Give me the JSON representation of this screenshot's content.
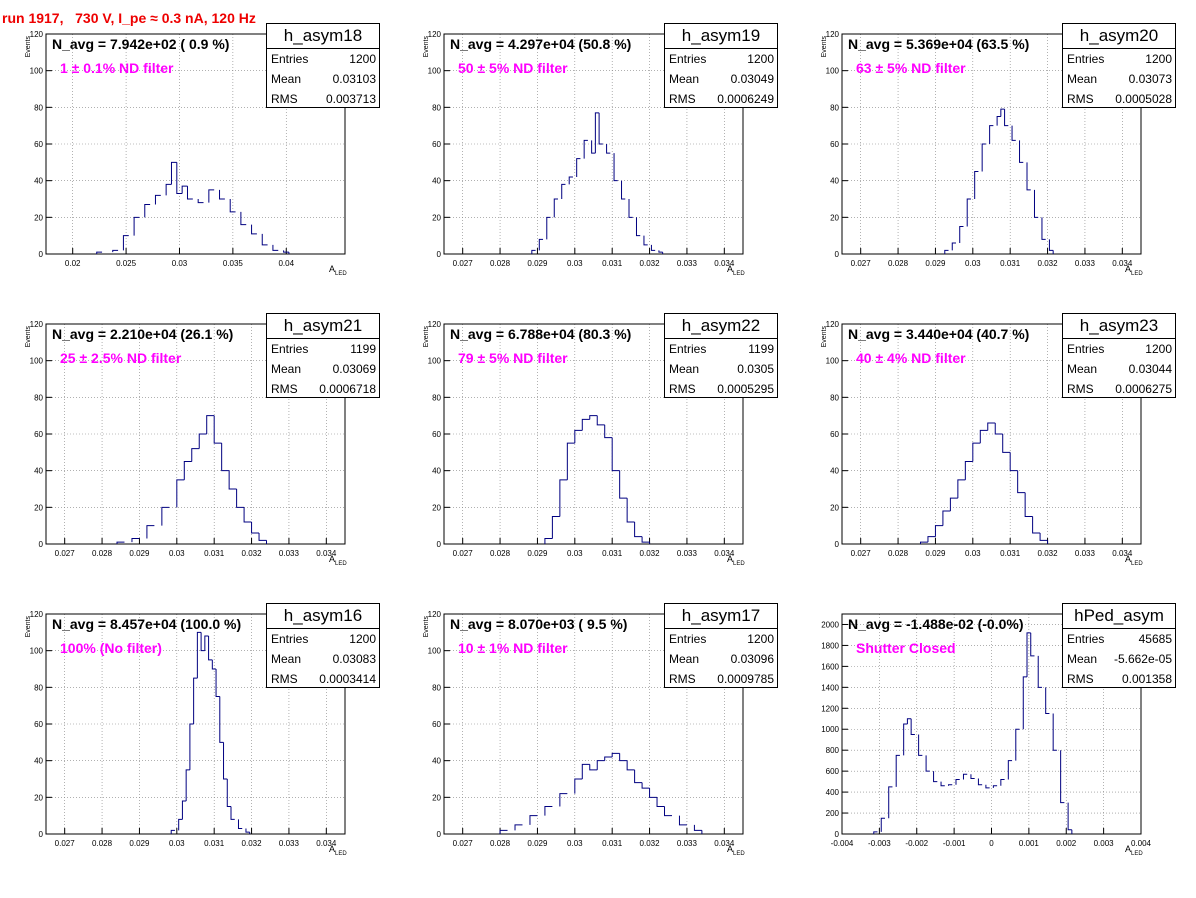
{
  "title": "run 1917,   730 V, I_pe ≈ 0.3 nA, 120 Hz",
  "colors": {
    "hist_line": "#000080",
    "title": "#ee0000",
    "annotation": "#ff00ff",
    "grid": "#808080"
  },
  "chart_data": [
    {
      "type": "histogram",
      "name": "h_asym18",
      "navg": "N_avg = 7.942e+02 ( 0.9 %)",
      "filter": "1 ± 0.1% ND filter",
      "stats": {
        "entries_label": "Entries",
        "entries": "1200",
        "mean_label": "Mean",
        "mean": "0.03103",
        "rms_label": "RMS",
        "rms": "0.003713"
      },
      "xlabel": "A_LED",
      "ylabel": "Events",
      "xlim": [
        0.0175,
        0.0455
      ],
      "ylim": [
        0,
        120
      ],
      "xticks": [
        0.02,
        0.025,
        0.03,
        0.035,
        0.04
      ],
      "xtick_labels": [
        "0.02",
        "0.025",
        "0.03",
        "0.035",
        "0.04"
      ],
      "yticks": [
        0,
        20,
        40,
        60,
        80,
        100,
        120
      ],
      "ytick_labels": [
        "0",
        "20",
        "40",
        "60",
        "80",
        "100",
        "120"
      ],
      "x": [
        0.0225,
        0.024,
        0.025,
        0.026,
        0.027,
        0.028,
        0.029,
        0.0295,
        0.03,
        0.0305,
        0.031,
        0.032,
        0.033,
        0.034,
        0.035,
        0.036,
        0.037,
        0.038,
        0.039,
        0.04
      ],
      "y": [
        1,
        2,
        10,
        20,
        27,
        32,
        38,
        50,
        33,
        37,
        30,
        28,
        35,
        30,
        23,
        16,
        11,
        5,
        2,
        1
      ]
    },
    {
      "type": "histogram",
      "name": "h_asym19",
      "navg": "N_avg = 4.297e+04 (50.8 %)",
      "filter": "50 ± 5% ND filter",
      "stats": {
        "entries_label": "Entries",
        "entries": "1200",
        "mean_label": "Mean",
        "mean": "0.03049",
        "rms_label": "RMS",
        "rms": "0.0006249"
      },
      "xlabel": "A_LED",
      "ylabel": "Events",
      "xlim": [
        0.0265,
        0.0345
      ],
      "ylim": [
        0,
        120
      ],
      "xticks": [
        0.027,
        0.028,
        0.029,
        0.03,
        0.031,
        0.032,
        0.033,
        0.034
      ],
      "xtick_labels": [
        "0.027",
        "0.028",
        "0.029",
        "0.03",
        "0.031",
        "0.032",
        "0.033",
        "0.034"
      ],
      "yticks": [
        0,
        20,
        40,
        60,
        80,
        100,
        120
      ],
      "ytick_labels": [
        "0",
        "20",
        "40",
        "60",
        "80",
        "100",
        "120"
      ],
      "x": [
        0.0289,
        0.0291,
        0.0293,
        0.0295,
        0.0297,
        0.0299,
        0.0301,
        0.0303,
        0.0305,
        0.0306,
        0.0307,
        0.0309,
        0.0311,
        0.0313,
        0.0315,
        0.0317,
        0.0319,
        0.0321,
        0.0323
      ],
      "y": [
        2,
        8,
        20,
        30,
        38,
        42,
        52,
        62,
        55,
        77,
        60,
        55,
        40,
        30,
        20,
        10,
        5,
        2,
        1
      ]
    },
    {
      "type": "histogram",
      "name": "h_asym20",
      "navg": "N_avg = 5.369e+04 (63.5 %)",
      "filter": "63 ± 5% ND filter",
      "stats": {
        "entries_label": "Entries",
        "entries": "1200",
        "mean_label": "Mean",
        "mean": "0.03073",
        "rms_label": "RMS",
        "rms": "0.0005028"
      },
      "xlabel": "A_LED",
      "ylabel": "Events",
      "xlim": [
        0.0265,
        0.0345
      ],
      "ylim": [
        0,
        120
      ],
      "xticks": [
        0.027,
        0.028,
        0.029,
        0.03,
        0.031,
        0.032,
        0.033,
        0.034
      ],
      "xtick_labels": [
        "0.027",
        "0.028",
        "0.029",
        "0.03",
        "0.031",
        "0.032",
        "0.033",
        "0.034"
      ],
      "yticks": [
        0,
        20,
        40,
        60,
        80,
        100,
        120
      ],
      "ytick_labels": [
        "0",
        "20",
        "40",
        "60",
        "80",
        "100",
        "120"
      ],
      "x": [
        0.0293,
        0.0295,
        0.0297,
        0.0299,
        0.0301,
        0.0303,
        0.0305,
        0.0307,
        0.0308,
        0.0309,
        0.0311,
        0.0313,
        0.0315,
        0.0317,
        0.0319,
        0.0321
      ],
      "y": [
        2,
        6,
        15,
        30,
        45,
        60,
        70,
        75,
        79,
        70,
        62,
        50,
        35,
        20,
        8,
        2
      ]
    },
    {
      "type": "histogram",
      "name": "h_asym21",
      "navg": "N_avg = 2.210e+04 (26.1 %)",
      "filter": "25 ± 2.5% ND filter",
      "stats": {
        "entries_label": "Entries",
        "entries": "1199",
        "mean_label": "Mean",
        "mean": "0.03069",
        "rms_label": "RMS",
        "rms": "0.0006718"
      },
      "xlabel": "A_LED",
      "ylabel": "Events",
      "xlim": [
        0.0265,
        0.0345
      ],
      "ylim": [
        0,
        120
      ],
      "xticks": [
        0.027,
        0.028,
        0.029,
        0.03,
        0.031,
        0.032,
        0.033,
        0.034
      ],
      "xtick_labels": [
        "0.027",
        "0.028",
        "0.029",
        "0.03",
        "0.031",
        "0.032",
        "0.033",
        "0.034"
      ],
      "yticks": [
        0,
        20,
        40,
        60,
        80,
        100,
        120
      ],
      "ytick_labels": [
        "0",
        "20",
        "40",
        "60",
        "80",
        "100",
        "120"
      ],
      "x": [
        0.0285,
        0.0289,
        0.0293,
        0.0297,
        0.0301,
        0.0303,
        0.0305,
        0.0307,
        0.0309,
        0.0311,
        0.0313,
        0.0315,
        0.0317,
        0.0319,
        0.0321,
        0.0323
      ],
      "y": [
        1,
        3,
        10,
        20,
        35,
        45,
        52,
        60,
        70,
        55,
        40,
        30,
        20,
        12,
        6,
        2
      ]
    },
    {
      "type": "histogram",
      "name": "h_asym22",
      "navg": "N_avg = 6.788e+04 (80.3 %)",
      "filter": "79 ± 5% ND filter",
      "stats": {
        "entries_label": "Entries",
        "entries": "1199",
        "mean_label": "Mean",
        "mean": "0.0305",
        "rms_label": "RMS",
        "rms": "0.0005295"
      },
      "xlabel": "A_LED",
      "ylabel": "Events",
      "xlim": [
        0.0265,
        0.0345
      ],
      "ylim": [
        0,
        120
      ],
      "xticks": [
        0.027,
        0.028,
        0.029,
        0.03,
        0.031,
        0.032,
        0.033,
        0.034
      ],
      "xtick_labels": [
        "0.027",
        "0.028",
        "0.029",
        "0.03",
        "0.031",
        "0.032",
        "0.033",
        "0.034"
      ],
      "yticks": [
        0,
        20,
        40,
        60,
        80,
        100,
        120
      ],
      "ytick_labels": [
        "0",
        "20",
        "40",
        "60",
        "80",
        "100",
        "120"
      ],
      "x": [
        0.0293,
        0.0295,
        0.0297,
        0.0299,
        0.0301,
        0.0303,
        0.0305,
        0.0307,
        0.0309,
        0.0311,
        0.0313,
        0.0315,
        0.0317,
        0.0319
      ],
      "y": [
        3,
        15,
        35,
        55,
        62,
        68,
        70,
        65,
        58,
        40,
        25,
        12,
        4,
        1
      ]
    },
    {
      "type": "histogram",
      "name": "h_asym23",
      "navg": "N_avg = 3.440e+04 (40.7 %)",
      "filter": "40 ± 4% ND filter",
      "stats": {
        "entries_label": "Entries",
        "entries": "1200",
        "mean_label": "Mean",
        "mean": "0.03044",
        "rms_label": "RMS",
        "rms": "0.0006275"
      },
      "xlabel": "A_LED",
      "ylabel": "Events",
      "xlim": [
        0.0265,
        0.0345
      ],
      "ylim": [
        0,
        120
      ],
      "xticks": [
        0.027,
        0.028,
        0.029,
        0.03,
        0.031,
        0.032,
        0.033,
        0.034
      ],
      "xtick_labels": [
        "0.027",
        "0.028",
        "0.029",
        "0.03",
        "0.031",
        "0.032",
        "0.033",
        "0.034"
      ],
      "yticks": [
        0,
        20,
        40,
        60,
        80,
        100,
        120
      ],
      "ytick_labels": [
        "0",
        "20",
        "40",
        "60",
        "80",
        "100",
        "120"
      ],
      "x": [
        0.0287,
        0.0289,
        0.0291,
        0.0293,
        0.0295,
        0.0297,
        0.0299,
        0.0301,
        0.0303,
        0.0305,
        0.0307,
        0.0309,
        0.0311,
        0.0313,
        0.0315,
        0.0317,
        0.0319
      ],
      "y": [
        1,
        4,
        10,
        18,
        25,
        35,
        45,
        55,
        62,
        66,
        60,
        50,
        40,
        28,
        15,
        6,
        2
      ]
    },
    {
      "type": "histogram",
      "name": "h_asym16",
      "navg": "N_avg = 8.457e+04 (100.0 %)",
      "filter": "100% (No filter)",
      "stats": {
        "entries_label": "Entries",
        "entries": "1200",
        "mean_label": "Mean",
        "mean": "0.03083",
        "rms_label": "RMS",
        "rms": "0.0003414"
      },
      "xlabel": "A_LED",
      "ylabel": "Events",
      "xlim": [
        0.0265,
        0.0345
      ],
      "ylim": [
        0,
        120
      ],
      "xticks": [
        0.027,
        0.028,
        0.029,
        0.03,
        0.031,
        0.032,
        0.033,
        0.034
      ],
      "xtick_labels": [
        "0.027",
        "0.028",
        "0.029",
        "0.03",
        "0.031",
        "0.032",
        "0.033",
        "0.034"
      ],
      "yticks": [
        0,
        20,
        40,
        60,
        80,
        100,
        120
      ],
      "ytick_labels": [
        "0",
        "20",
        "40",
        "60",
        "80",
        "100",
        "120"
      ],
      "x": [
        0.0299,
        0.0301,
        0.0302,
        0.0303,
        0.0304,
        0.0305,
        0.0306,
        0.0307,
        0.0308,
        0.0309,
        0.031,
        0.0311,
        0.0312,
        0.0313,
        0.0314,
        0.0315,
        0.0317,
        0.0319
      ],
      "y": [
        2,
        8,
        18,
        35,
        60,
        85,
        110,
        100,
        108,
        95,
        90,
        75,
        50,
        30,
        15,
        8,
        3,
        1
      ]
    },
    {
      "type": "histogram",
      "name": "h_asym17",
      "navg": "N_avg = 8.070e+03 ( 9.5 %)",
      "filter": "10 ± 1% ND filter",
      "stats": {
        "entries_label": "Entries",
        "entries": "1200",
        "mean_label": "Mean",
        "mean": "0.03096",
        "rms_label": "RMS",
        "rms": "0.0009785"
      },
      "xlabel": "A_LED",
      "ylabel": "Events",
      "xlim": [
        0.0265,
        0.0345
      ],
      "ylim": [
        0,
        120
      ],
      "xticks": [
        0.027,
        0.028,
        0.029,
        0.03,
        0.031,
        0.032,
        0.033,
        0.034
      ],
      "xtick_labels": [
        "0.027",
        "0.028",
        "0.029",
        "0.03",
        "0.031",
        "0.032",
        "0.033",
        "0.034"
      ],
      "yticks": [
        0,
        20,
        40,
        60,
        80,
        100,
        120
      ],
      "ytick_labels": [
        "0",
        "20",
        "40",
        "60",
        "80",
        "100",
        "120"
      ],
      "x": [
        0.0281,
        0.0285,
        0.0289,
        0.0293,
        0.0297,
        0.0301,
        0.0303,
        0.0305,
        0.0307,
        0.0309,
        0.0311,
        0.0313,
        0.0315,
        0.0317,
        0.0319,
        0.0321,
        0.0323,
        0.0325,
        0.0329,
        0.0333
      ],
      "y": [
        2,
        5,
        10,
        15,
        22,
        30,
        38,
        35,
        40,
        42,
        44,
        40,
        35,
        28,
        25,
        20,
        15,
        10,
        5,
        2
      ]
    },
    {
      "type": "histogram",
      "name": "hPed_asym",
      "navg": "N_avg = -1.488e-02 (-0.0%)",
      "filter": "Shutter Closed",
      "stats": {
        "entries_label": "Entries",
        "entries": "45685",
        "mean_label": "Mean",
        "mean": "-5.662e-05",
        "rms_label": "RMS",
        "rms": "0.001358"
      },
      "xlabel": "A_LED",
      "ylabel": "",
      "xlim": [
        -0.004,
        0.004
      ],
      "ylim": [
        0,
        2100
      ],
      "xticks": [
        -0.004,
        -0.003,
        -0.002,
        -0.001,
        0,
        0.001,
        0.002,
        0.003,
        0.004
      ],
      "xtick_labels": [
        "-0.004",
        "-0.003",
        "-0.002",
        "-0.001",
        "0",
        "0.001",
        "0.002",
        "0.003",
        "0.004"
      ],
      "yticks": [
        0,
        200,
        400,
        600,
        800,
        1000,
        1200,
        1400,
        1600,
        1800,
        2000
      ],
      "ytick_labels": [
        "0",
        "200",
        "400",
        "600",
        "800",
        "1000",
        "1200",
        "1400",
        "1600",
        "1800",
        "2000"
      ],
      "x": [
        -0.0031,
        -0.0029,
        -0.0027,
        -0.0025,
        -0.0023,
        -0.0022,
        -0.0021,
        -0.0019,
        -0.0017,
        -0.0015,
        -0.0013,
        -0.0011,
        -0.0009,
        -0.0007,
        -0.0005,
        -0.0003,
        -0.0001,
        0.0001,
        0.0003,
        0.0005,
        0.0007,
        0.0009,
        0.001,
        0.0011,
        0.0013,
        0.0015,
        0.0017,
        0.0019,
        0.0021
      ],
      "y": [
        20,
        150,
        450,
        750,
        1050,
        1100,
        950,
        750,
        600,
        500,
        460,
        470,
        520,
        570,
        530,
        470,
        440,
        460,
        520,
        700,
        1000,
        1500,
        1920,
        1700,
        1400,
        1150,
        800,
        300,
        40
      ]
    }
  ]
}
